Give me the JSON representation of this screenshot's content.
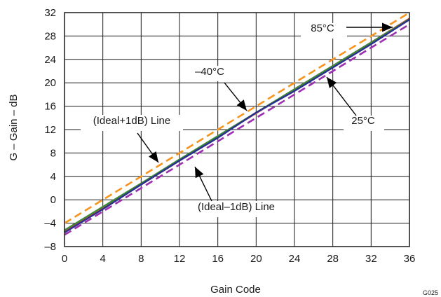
{
  "chart_data": {
    "type": "line",
    "xlabel": "Gain Code",
    "ylabel": "G – Gain – dB",
    "xlim": [
      0,
      36
    ],
    "ylim": [
      -8,
      32
    ],
    "x_ticks": [
      "0",
      "4",
      "8",
      "12",
      "16",
      "20",
      "24",
      "28",
      "32",
      "36"
    ],
    "y_ticks": [
      "32",
      "28",
      "24",
      "20",
      "16",
      "12",
      "8",
      "4",
      "0",
      "–4",
      "–8"
    ],
    "grid": true,
    "figure_id": "G025",
    "series": [
      {
        "name": "(Ideal+1dB) Line",
        "style": "dashed",
        "color": "#f7941d",
        "x": [
          0,
          36
        ],
        "y": [
          -4,
          32
        ]
      },
      {
        "name": "(Ideal–1dB) Line",
        "style": "dashed",
        "color": "#9b2fae",
        "x": [
          0,
          36
        ],
        "y": [
          -6,
          30
        ]
      },
      {
        "name": "85°C",
        "style": "solid",
        "color": "#e8392a",
        "x": [
          0,
          4,
          8,
          12,
          16,
          20,
          24,
          28,
          32,
          36
        ],
        "y": [
          -5.4,
          -1.4,
          2.6,
          6.7,
          10.8,
          14.8,
          18.9,
          22.9,
          26.9,
          31
        ]
      },
      {
        "name": "25°C",
        "style": "solid",
        "color": "#3d8a3d",
        "x": [
          0,
          4,
          8,
          12,
          16,
          20,
          24,
          28,
          32,
          36
        ],
        "y": [
          -5.2,
          -1.2,
          2.8,
          6.9,
          10.9,
          14.9,
          18.9,
          22.9,
          26.9,
          30.9
        ]
      },
      {
        "name": "–40°C",
        "style": "solid",
        "color": "#2b2f8f",
        "x": [
          0,
          4,
          8,
          12,
          16,
          20,
          24,
          28,
          32,
          36
        ],
        "y": [
          -5.6,
          -1.6,
          2.6,
          6.7,
          10.6,
          14.9,
          18.6,
          22.6,
          26.6,
          30.8
        ]
      }
    ],
    "annotations": [
      {
        "text": "85°C"
      },
      {
        "text": "–40°C"
      },
      {
        "text": "25°C"
      },
      {
        "text": "(Ideal+1dB) Line"
      },
      {
        "text": "(Ideal–1dB) Line"
      }
    ]
  }
}
